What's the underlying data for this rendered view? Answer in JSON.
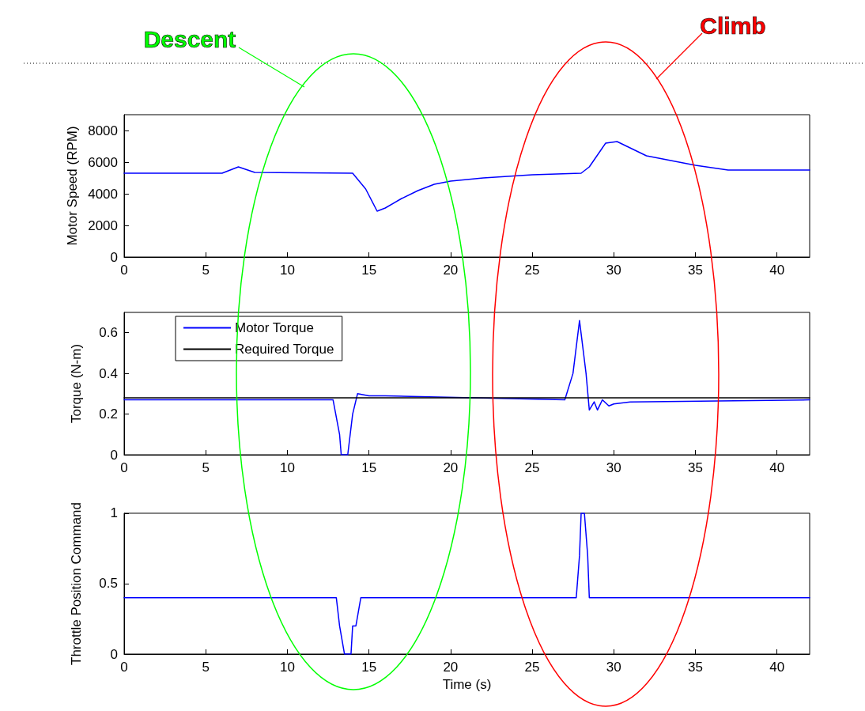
{
  "chart_data": [
    {
      "type": "line",
      "ylabel": "Motor Speed (RPM)",
      "annotations": [
        "Descent",
        "Climb"
      ],
      "xlim": [
        0,
        42
      ],
      "xticks": [
        0,
        5,
        10,
        15,
        20,
        25,
        30,
        35,
        40
      ],
      "ylim": [
        0,
        9000
      ],
      "yticks": [
        0,
        2000,
        4000,
        6000,
        8000
      ],
      "series": [
        {
          "color": "#0000ff",
          "x": [
            0,
            6,
            7,
            8,
            14,
            14.8,
            15.5,
            16,
            17,
            18,
            19,
            20,
            22,
            25,
            28,
            28.5,
            29.5,
            30.2,
            31,
            32,
            34,
            35,
            36,
            37,
            42
          ],
          "values": [
            5300,
            5300,
            5700,
            5350,
            5300,
            4300,
            2900,
            3100,
            3700,
            4200,
            4600,
            4800,
            5000,
            5200,
            5300,
            5700,
            7200,
            7300,
            6900,
            6400,
            6000,
            5800,
            5650,
            5500,
            5500
          ]
        }
      ]
    },
    {
      "type": "line",
      "ylabel": "Torque (N-m)",
      "legend": "top left",
      "xlim": [
        0,
        42
      ],
      "xticks": [
        0,
        5,
        10,
        15,
        20,
        25,
        30,
        35,
        40
      ],
      "ylim": [
        0,
        0.7
      ],
      "yticks": [
        0,
        0.2,
        0.4,
        0.6
      ],
      "series": [
        {
          "name": "Motor Torque",
          "color": "#0000ff",
          "x": [
            0,
            12.8,
            13.2,
            13.3,
            13.7,
            14,
            14.3,
            15,
            16,
            27,
            27.5,
            27.9,
            28.3,
            28.5,
            28.8,
            29,
            29.3,
            29.7,
            30,
            31,
            42
          ],
          "values": [
            0.27,
            0.27,
            0.1,
            0,
            0,
            0.2,
            0.3,
            0.29,
            0.29,
            0.27,
            0.4,
            0.66,
            0.4,
            0.22,
            0.26,
            0.22,
            0.27,
            0.24,
            0.25,
            0.26,
            0.27
          ]
        },
        {
          "name": "Required Torque",
          "color": "#000000",
          "x": [
            0,
            42
          ],
          "values": [
            0.28,
            0.28
          ]
        }
      ]
    },
    {
      "type": "line",
      "xlabel": "Time (s)",
      "ylabel": "Throttle Position Command",
      "xlim": [
        0,
        42
      ],
      "xticks": [
        0,
        5,
        10,
        15,
        20,
        25,
        30,
        35,
        40
      ],
      "ylim": [
        0,
        1
      ],
      "yticks": [
        0,
        0.5,
        1
      ],
      "series": [
        {
          "color": "#0000ff",
          "x": [
            0,
            13,
            13.2,
            13.5,
            13.9,
            14,
            14.2,
            14.5,
            27.7,
            27.9,
            28,
            28.2,
            28.4,
            28.5,
            42
          ],
          "values": [
            0.4,
            0.4,
            0.2,
            0,
            0,
            0.2,
            0.2,
            0.4,
            0.4,
            0.7,
            1,
            1,
            0.7,
            0.4,
            0.4
          ]
        }
      ]
    }
  ]
}
